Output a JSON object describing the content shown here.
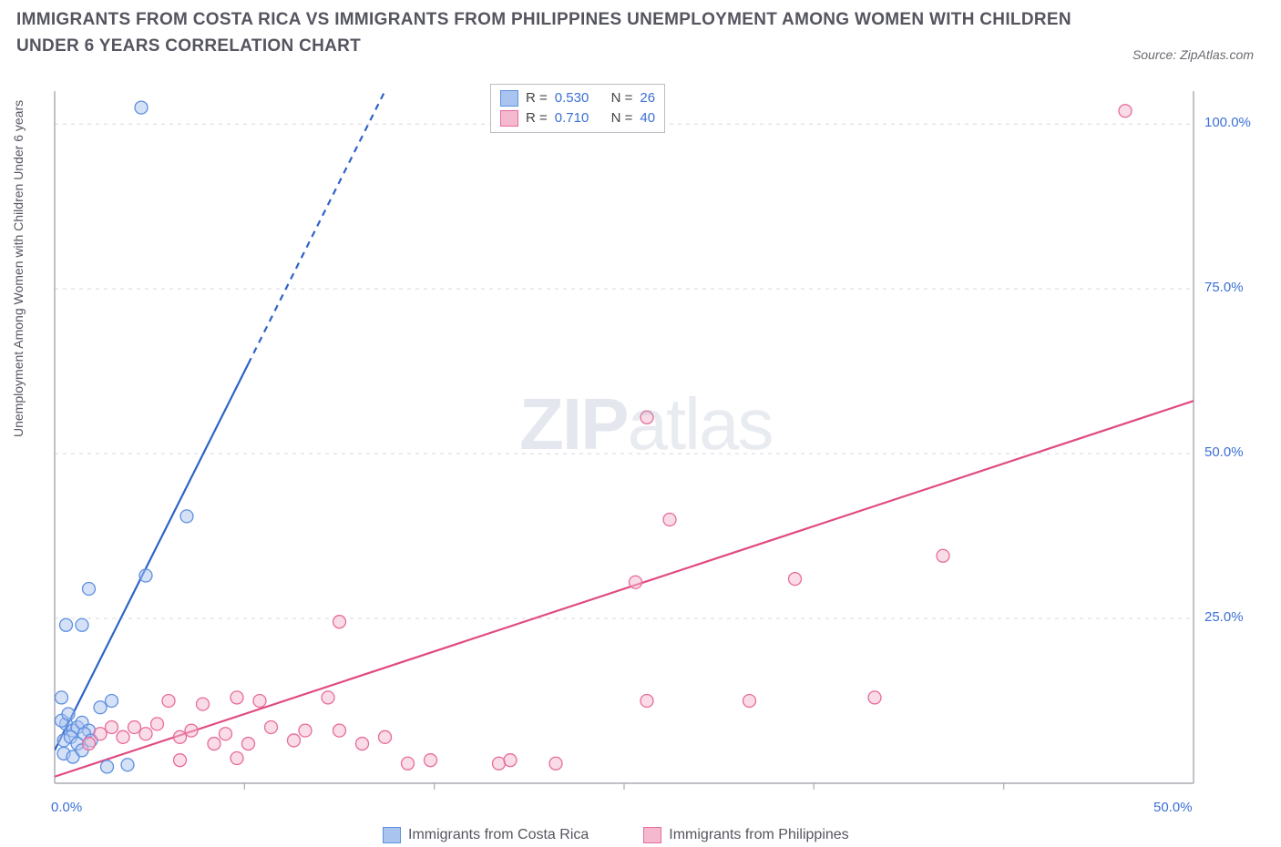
{
  "title": "IMMIGRANTS FROM COSTA RICA VS IMMIGRANTS FROM PHILIPPINES UNEMPLOYMENT AMONG WOMEN WITH CHILDREN UNDER 6 YEARS CORRELATION CHART",
  "source": "Source: ZipAtlas.com",
  "y_axis_label": "Unemployment Among Women with Children Under 6 years",
  "watermark_bold": "ZIP",
  "watermark_thin": "atlas",
  "chart": {
    "type": "scatter",
    "background_color": "#ffffff",
    "grid_color": "#d8d8dc",
    "axis_color": "#9a9aa2",
    "xlim": [
      0,
      50
    ],
    "ylim": [
      0,
      105
    ],
    "x_ticks": [
      0,
      50
    ],
    "x_tick_labels": [
      "0.0%",
      "50.0%"
    ],
    "y_ticks": [
      25,
      50,
      75,
      100
    ],
    "y_tick_labels": [
      "25.0%",
      "50.0%",
      "75.0%",
      "100.0%"
    ],
    "x_minor_gridlines": [
      8.33,
      16.67,
      25,
      33.33,
      41.67
    ],
    "tick_label_color": "#3b6fd6",
    "tick_fontsize": 15,
    "title_fontsize": 19,
    "title_color": "#555560",
    "marker_radius": 7,
    "marker_opacity": 0.5,
    "marker_stroke_width": 1.3
  },
  "series": [
    {
      "name": "Immigrants from Costa Rica",
      "color_fill": "#a9c4ef",
      "color_stroke": "#5e8fe0",
      "line_color": "#2f62c9",
      "line_width": 2.2,
      "dash_segment_start": 60,
      "R": "0.530",
      "N": "26",
      "reg_line": {
        "x1": 0,
        "y1": 5,
        "x2": 14.5,
        "y2": 105
      },
      "solid_until_x": 8.5,
      "points": [
        [
          3.8,
          102.5
        ],
        [
          0.5,
          24.0
        ],
        [
          1.2,
          24.0
        ],
        [
          1.5,
          29.5
        ],
        [
          4.0,
          31.5
        ],
        [
          5.8,
          40.5
        ],
        [
          0.3,
          13.0
        ],
        [
          0.5,
          9.0
        ],
        [
          0.8,
          8.0
        ],
        [
          1.0,
          8.5
        ],
        [
          1.2,
          9.2
        ],
        [
          1.5,
          8.0
        ],
        [
          0.4,
          6.5
        ],
        [
          0.7,
          7.0
        ],
        [
          1.0,
          6.0
        ],
        [
          1.3,
          7.5
        ],
        [
          1.6,
          6.5
        ],
        [
          0.3,
          9.5
        ],
        [
          0.6,
          10.5
        ],
        [
          2.0,
          11.5
        ],
        [
          2.5,
          12.5
        ],
        [
          0.4,
          4.5
        ],
        [
          0.8,
          4.0
        ],
        [
          1.2,
          5.0
        ],
        [
          2.3,
          2.5
        ],
        [
          3.2,
          2.8
        ]
      ]
    },
    {
      "name": "Immigrants from Philippines",
      "color_fill": "#f4b9cf",
      "color_stroke": "#e86b9a",
      "line_color": "#e04a82",
      "line_width": 2.2,
      "R": "0.710",
      "N": "40",
      "reg_line": {
        "x1": 0,
        "y1": 1,
        "x2": 50,
        "y2": 58
      },
      "solid_until_x": 50,
      "points": [
        [
          47.0,
          102.0
        ],
        [
          26.0,
          55.5
        ],
        [
          27.0,
          40.0
        ],
        [
          25.5,
          30.5
        ],
        [
          32.5,
          31.0
        ],
        [
          39.0,
          34.5
        ],
        [
          12.5,
          24.5
        ],
        [
          26.0,
          12.5
        ],
        [
          30.5,
          12.5
        ],
        [
          36.0,
          13.0
        ],
        [
          19.5,
          3.0
        ],
        [
          20.0,
          3.5
        ],
        [
          22.0,
          3.0
        ],
        [
          15.5,
          3.0
        ],
        [
          16.5,
          3.5
        ],
        [
          13.5,
          6.0
        ],
        [
          14.5,
          7.0
        ],
        [
          12.0,
          13.0
        ],
        [
          12.5,
          8.0
        ],
        [
          10.5,
          6.5
        ],
        [
          11.0,
          8.0
        ],
        [
          8.0,
          13.0
        ],
        [
          9.0,
          12.5
        ],
        [
          9.5,
          8.5
        ],
        [
          7.0,
          6.0
        ],
        [
          7.5,
          7.5
        ],
        [
          8.5,
          6.0
        ],
        [
          5.0,
          12.5
        ],
        [
          5.5,
          7.0
        ],
        [
          6.0,
          8.0
        ],
        [
          6.5,
          12.0
        ],
        [
          3.0,
          7.0
        ],
        [
          3.5,
          8.5
        ],
        [
          4.0,
          7.5
        ],
        [
          4.5,
          9.0
        ],
        [
          2.0,
          7.5
        ],
        [
          2.5,
          8.5
        ],
        [
          5.5,
          3.5
        ],
        [
          8.0,
          3.8
        ],
        [
          1.5,
          6.0
        ]
      ]
    }
  ],
  "legend_top_labels": {
    "R_prefix": "R = ",
    "N_prefix": "N = "
  },
  "legend_bottom": [
    {
      "label": "Immigrants from Costa Rica",
      "fill": "#a9c4ef",
      "stroke": "#5e8fe0"
    },
    {
      "label": "Immigrants from Philippines",
      "fill": "#f4b9cf",
      "stroke": "#e86b9a"
    }
  ]
}
